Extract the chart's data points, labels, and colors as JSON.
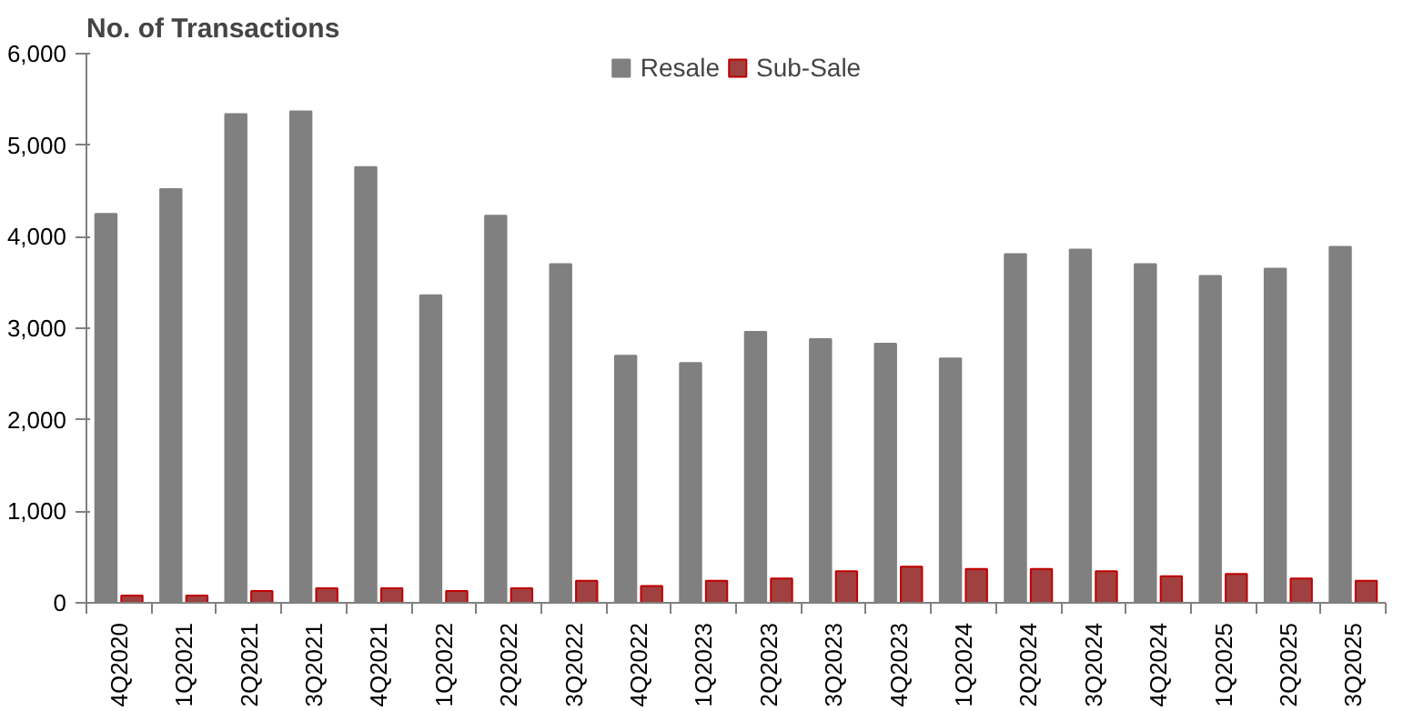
{
  "chart_data": {
    "type": "bar",
    "title": "No. of Transactions",
    "categories": [
      "4Q2020",
      "1Q2021",
      "2Q2021",
      "3Q2021",
      "4Q2021",
      "1Q2022",
      "2Q2022",
      "3Q2022",
      "4Q2022",
      "1Q2023",
      "2Q2023",
      "3Q2023",
      "4Q2023",
      "1Q2024",
      "2Q2024",
      "3Q2024",
      "4Q2024",
      "1Q2025",
      "2Q2025",
      "3Q2025"
    ],
    "series": [
      {
        "name": "Resale",
        "color": "#808080",
        "values": [
          4250,
          4520,
          5340,
          5370,
          4760,
          3360,
          4230,
          3700,
          2700,
          2620,
          2960,
          2880,
          2830,
          2670,
          3810,
          3860,
          3700,
          3570,
          3650,
          3890
        ]
      },
      {
        "name": "Sub-Sale",
        "color": "#a04040",
        "values": [
          80,
          80,
          130,
          160,
          160,
          130,
          160,
          240,
          185,
          240,
          265,
          345,
          395,
          370,
          370,
          345,
          290,
          315,
          265,
          240
        ]
      }
    ],
    "ylim": [
      0,
      6000
    ],
    "yticks": [
      {
        "value": 0,
        "label": "0"
      },
      {
        "value": 1000,
        "label": "1,000"
      },
      {
        "value": 2000,
        "label": "2,000"
      },
      {
        "value": 3000,
        "label": "3,000"
      },
      {
        "value": 4000,
        "label": "4,000"
      },
      {
        "value": 5000,
        "label": "5,000"
      },
      {
        "value": 6000,
        "label": "6,000"
      }
    ],
    "grid": false,
    "legend": "top"
  }
}
